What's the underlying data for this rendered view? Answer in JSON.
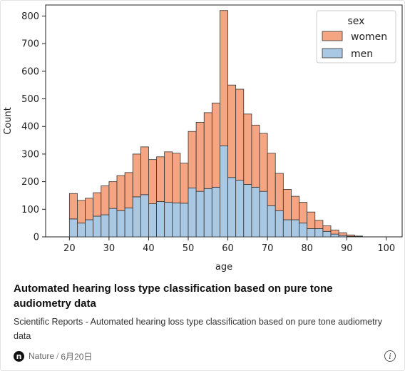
{
  "card": {
    "title": "Automated hearing loss type classification based on pure tone audiometry data",
    "description": "Scientific Reports - Automated hearing loss type classification based on pure tone audiometry data",
    "source_logo": "n",
    "source_name": "Nature",
    "separator": "/",
    "date": "6月20日",
    "info_icon_glyph": "i"
  },
  "chart_data": {
    "type": "bar",
    "stacked": true,
    "xlabel": "age",
    "ylabel": "Count",
    "xlim": [
      14,
      104
    ],
    "ylim": [
      0,
      840
    ],
    "xticks": [
      20,
      30,
      40,
      50,
      60,
      70,
      80,
      90,
      100
    ],
    "yticks": [
      0,
      100,
      200,
      300,
      400,
      500,
      600,
      700,
      800
    ],
    "bin_edges": [
      20,
      22,
      24,
      26,
      28,
      30,
      32,
      34,
      36,
      38,
      40,
      42,
      44,
      46,
      48,
      50,
      52,
      54,
      56,
      58,
      60,
      62,
      64,
      66,
      68,
      70,
      72,
      74,
      76,
      78,
      80,
      82,
      84,
      86,
      88,
      90,
      92,
      94,
      96
    ],
    "legend": {
      "title": "sex",
      "placement": "top-right"
    },
    "series": [
      {
        "name": "men",
        "color": "#a8c8e4",
        "values": [
          65,
          50,
          62,
          75,
          80,
          103,
          95,
          105,
          145,
          153,
          120,
          128,
          125,
          123,
          122,
          177,
          165,
          175,
          180,
          330,
          215,
          205,
          190,
          180,
          165,
          113,
          95,
          62,
          62,
          50,
          30,
          30,
          20,
          10,
          5,
          2,
          2,
          0
        ]
      },
      {
        "name": "women",
        "color": "#f6a582",
        "values": [
          92,
          82,
          78,
          85,
          105,
          97,
          127,
          128,
          155,
          173,
          160,
          162,
          183,
          180,
          145,
          205,
          250,
          275,
          305,
          490,
          335,
          330,
          255,
          225,
          210,
          190,
          135,
          110,
          85,
          75,
          60,
          30,
          20,
          15,
          10,
          5,
          1,
          0
        ]
      }
    ]
  }
}
